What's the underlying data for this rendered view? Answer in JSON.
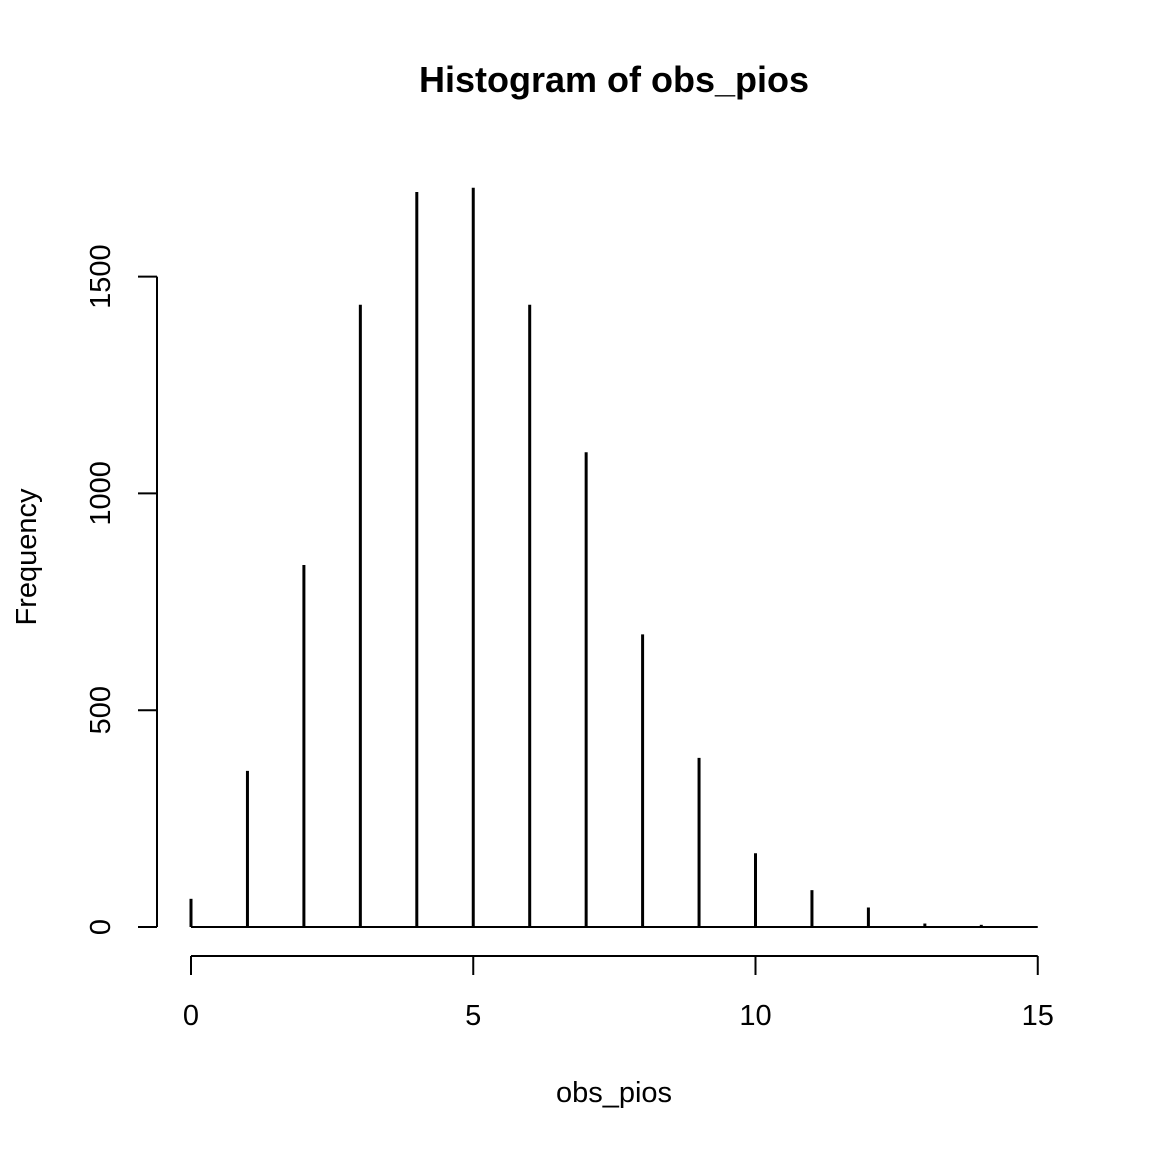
{
  "chart_data": {
    "type": "bar",
    "title": "Histogram of obs_pios",
    "xlabel": "obs_pios",
    "ylabel": "Frequency",
    "x": [
      0,
      1,
      2,
      3,
      4,
      5,
      6,
      7,
      8,
      9,
      10,
      11,
      12,
      13,
      14
    ],
    "values": [
      65,
      360,
      835,
      1435,
      1695,
      1705,
      1435,
      1095,
      675,
      390,
      170,
      85,
      45,
      8,
      5
    ],
    "xlim": [
      0,
      15
    ],
    "ylim": [
      0,
      1705
    ],
    "xticks": [
      "0",
      "5",
      "10",
      "15"
    ],
    "yticks": [
      "0",
      "500",
      "1000",
      "1500"
    ],
    "grid": false,
    "legend": "none",
    "bar_color": "#000000"
  }
}
